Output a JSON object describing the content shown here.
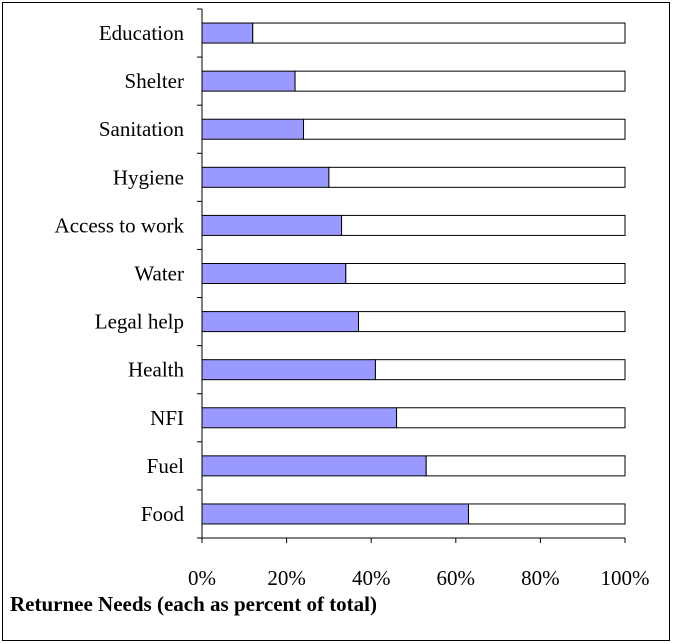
{
  "chart_data": {
    "type": "bar",
    "orientation": "horizontal",
    "stacked_to_100_percent": true,
    "title": "Returnee Needs (each as percent of total)",
    "categories": [
      "Education",
      "Shelter",
      "Sanitation",
      "Hygiene",
      "Access to work",
      "Water",
      "Legal help",
      "Health",
      "NFI",
      "Fuel",
      "Food"
    ],
    "series": [
      {
        "values": [
          12,
          22,
          24,
          30,
          33,
          34,
          37,
          41,
          46,
          53,
          63
        ],
        "color": "#9999ff"
      },
      {
        "values": [
          88,
          78,
          76,
          70,
          67,
          66,
          63,
          59,
          54,
          47,
          37
        ],
        "color": "#ffffff"
      }
    ],
    "xlim": [
      0,
      100
    ],
    "x_ticks": [
      "0%",
      "20%",
      "40%",
      "60%",
      "80%",
      "100%"
    ],
    "grid": false,
    "legend": "none"
  }
}
